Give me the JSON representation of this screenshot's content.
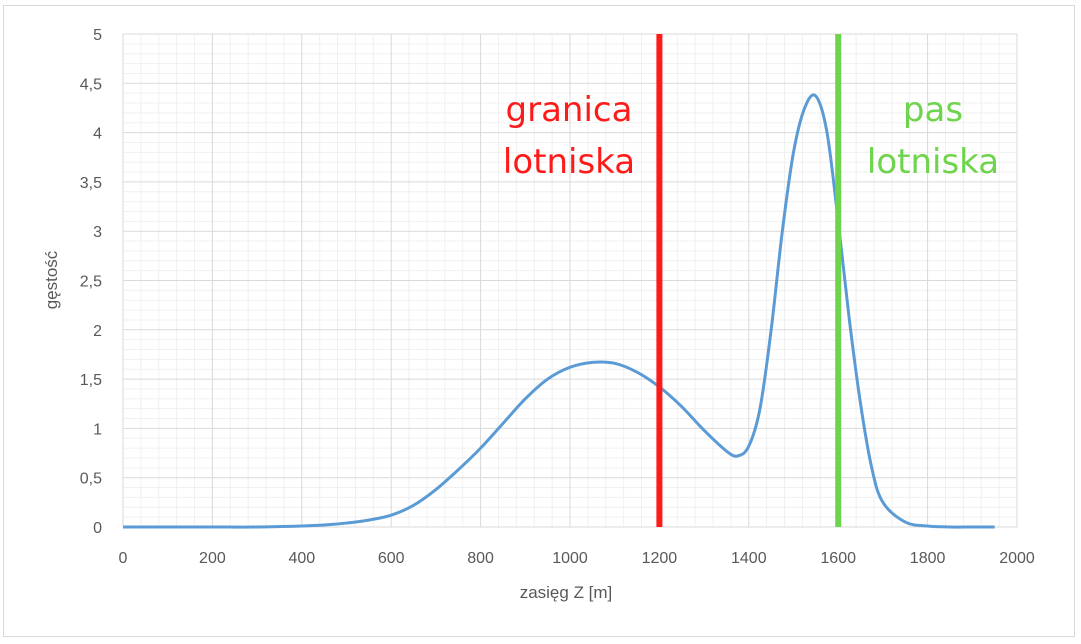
{
  "chart_data": {
    "type": "line",
    "title": "",
    "xlabel": "zasięg Z [m]",
    "ylabel": "gęstość",
    "xlim": [
      0,
      2000
    ],
    "ylim": [
      0,
      5
    ],
    "x_ticks": [
      "0",
      "200",
      "400",
      "600",
      "800",
      "1000",
      "1200",
      "1400",
      "1600",
      "1800",
      "2000"
    ],
    "y_ticks": [
      "0",
      "0,5",
      "1",
      "1,5",
      "2",
      "2,5",
      "3",
      "3,5",
      "4",
      "4,5",
      "5"
    ],
    "grid": true,
    "series": [
      {
        "color": "#5b9bd5",
        "x": [
          0,
          100,
          200,
          300,
          400,
          450,
          500,
          550,
          600,
          650,
          700,
          750,
          800,
          850,
          900,
          950,
          1000,
          1050,
          1100,
          1150,
          1200,
          1250,
          1300,
          1350,
          1375,
          1400,
          1425,
          1450,
          1475,
          1500,
          1525,
          1550,
          1575,
          1600,
          1625,
          1650,
          1675,
          1700,
          1750,
          1800,
          1850,
          1900,
          1950
        ],
        "y": [
          0,
          0,
          0,
          0,
          0.01,
          0.02,
          0.04,
          0.07,
          0.12,
          0.22,
          0.38,
          0.58,
          0.8,
          1.05,
          1.3,
          1.5,
          1.62,
          1.67,
          1.66,
          1.57,
          1.42,
          1.22,
          0.98,
          0.77,
          0.72,
          0.82,
          1.2,
          2.0,
          3.0,
          3.8,
          4.25,
          4.37,
          4.0,
          3.1,
          2.1,
          1.25,
          0.6,
          0.25,
          0.05,
          0.01,
          0,
          0,
          0
        ]
      }
    ],
    "annotations": [
      {
        "x": 1200,
        "label_lines": [
          "granica",
          "lotniska"
        ],
        "color": "#ff1a1a"
      },
      {
        "x": 1600,
        "label_lines": [
          "pas",
          "lotniska"
        ],
        "color": "#6dd44c"
      }
    ]
  }
}
